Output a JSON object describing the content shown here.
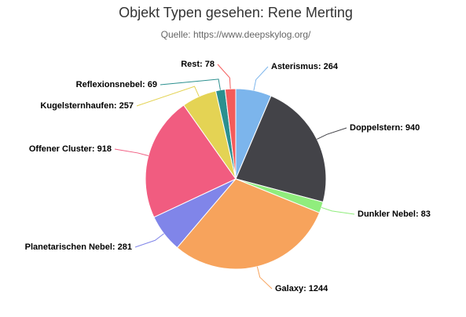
{
  "chart_data": {
    "type": "pie",
    "title": "Objekt Typen gesehen: Rene Merting",
    "subtitle": "Quelle: https://www.deepskylog.org/",
    "values": [
      264,
      940,
      83,
      1244,
      281,
      918,
      257,
      69,
      78
    ],
    "value_labels": [
      "Asterismus: 264",
      "Doppelstern: 940",
      "Dunkler Nebel: 83",
      "Galaxy: 1244",
      "Planetarischen Nebel: 281",
      "Offener Cluster: 918",
      "Kugelsternhaufen: 257",
      "Reflexionsnebel: 69",
      "Rest: 78"
    ],
    "colors": [
      "#7cb5ec",
      "#434348",
      "#90ed7d",
      "#f7a35c",
      "#8085e9",
      "#f15c80",
      "#e4d354",
      "#2b908f",
      "#f45b5b"
    ]
  }
}
